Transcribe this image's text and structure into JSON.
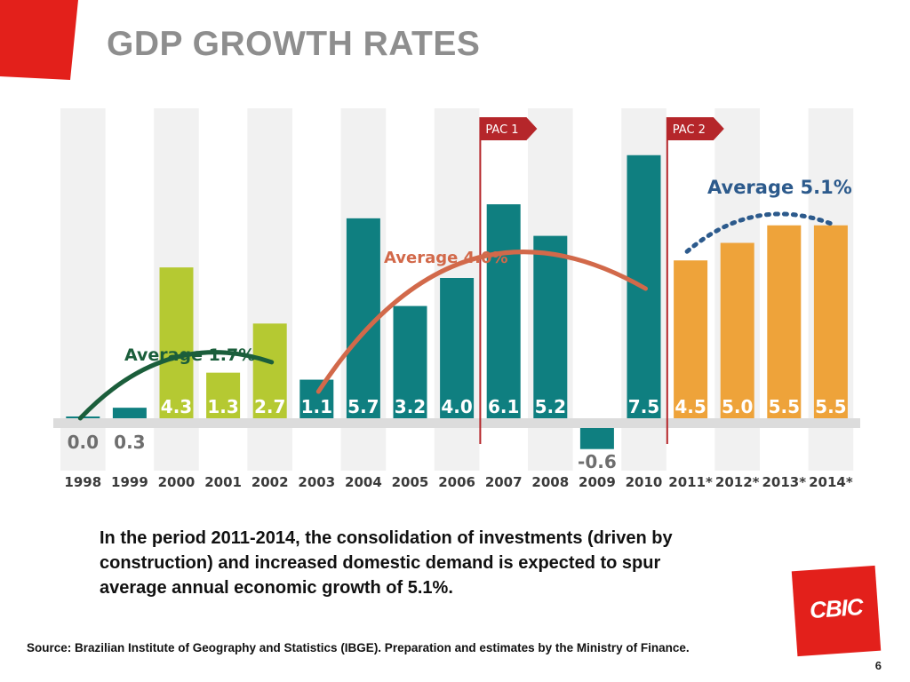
{
  "title": "GDP GROWTH RATES",
  "colors": {
    "red_accent": "#e3201b",
    "green": "#b5c932",
    "teal": "#0f7f80",
    "orange": "#eea33a",
    "avg_green_line": "#1b5e3b",
    "avg_orange_line": "#d2694a",
    "avg_blue_line": "#2c5a8c",
    "pac_red": "#b5262a",
    "title_gray": "#8e8e8e"
  },
  "chart_data": {
    "type": "bar",
    "categories": [
      "1998",
      "1999",
      "2000",
      "2001",
      "2002",
      "2003",
      "2004",
      "2005",
      "2006",
      "2007",
      "2008",
      "2009",
      "2010",
      "2011*",
      "2012*",
      "2013*",
      "2014*"
    ],
    "values": [
      0.0,
      0.3,
      4.3,
      1.3,
      2.7,
      1.1,
      5.7,
      3.2,
      4.0,
      6.1,
      5.2,
      -0.6,
      7.5,
      4.5,
      5.0,
      5.5,
      5.5
    ],
    "value_labels": [
      "0.0",
      "0.3",
      "4.3",
      "1.3",
      "2.7",
      "1.1",
      "5.7",
      "3.2",
      "4.0",
      "6.1",
      "5.2",
      "-0.6",
      "7.5",
      "4.5",
      "5.0",
      "5.5",
      "5.5"
    ],
    "bar_colors": [
      "#0f7f80",
      "#0f7f80",
      "#b5c932",
      "#b5c932",
      "#b5c932",
      "#0f7f80",
      "#0f7f80",
      "#0f7f80",
      "#0f7f80",
      "#0f7f80",
      "#0f7f80",
      "#0f7f80",
      "#0f7f80",
      "#eea33a",
      "#eea33a",
      "#eea33a",
      "#eea33a"
    ],
    "markers": [
      {
        "label": "PAC 1",
        "before_category": "2007"
      },
      {
        "label": "PAC 2",
        "before_category": "2011*"
      }
    ],
    "annotations": [
      {
        "text": "Average 1.7%",
        "value": 1.7,
        "color": "#1b5e3b"
      },
      {
        "text": "Average 4.0%",
        "value": 4.0,
        "color": "#d2694a"
      },
      {
        "text": "Average 5.1%",
        "value": 5.1,
        "color": "#2c5a8c"
      }
    ]
  },
  "body_text": "In the period 2011-2014, the consolidation of investments (driven by construction) and increased domestic demand is expected to spur average annual economic growth of 5.1%.",
  "source": "Source: Brazilian Institute of Geography and Statistics (IBGE). Preparation and estimates by the Ministry of Finance.",
  "logo_text": "CBIC",
  "page_number": "6"
}
